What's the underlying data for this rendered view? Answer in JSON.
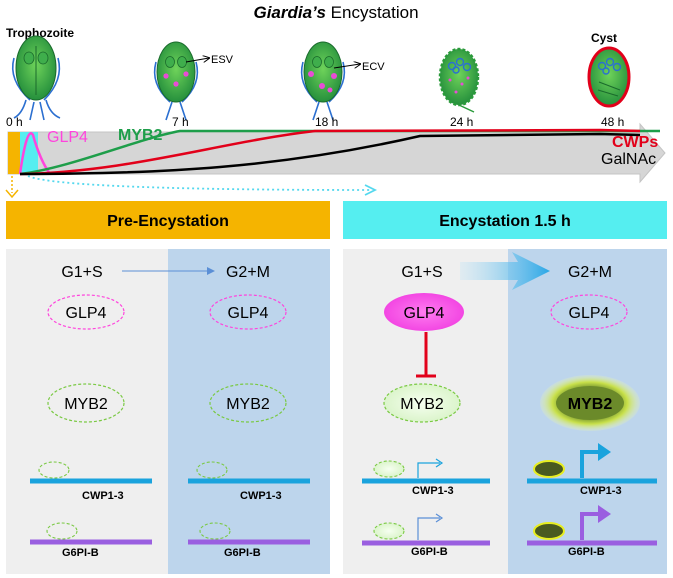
{
  "title": {
    "italic": "Giardia’s",
    "rest": " Encystation"
  },
  "stages": [
    {
      "label": "Trophozoite",
      "icon": "trophozoite-cell-icon"
    },
    {
      "label": "ESV",
      "icon": "cell-with-esv-icon"
    },
    {
      "label": "ECV",
      "icon": "cell-with-ecv-icon"
    },
    {
      "label": "",
      "icon": "early-cyst-icon"
    },
    {
      "label": "Cyst",
      "icon": "mature-cyst-icon"
    }
  ],
  "timeline": {
    "ticks": [
      "0 h",
      "7 h",
      "18 h",
      "24 h",
      "48 h"
    ],
    "labels": {
      "glp4": "GLP4",
      "myb2": "MYB2",
      "cwps": "CWPs",
      "galnac": "GalNAc"
    },
    "colors": {
      "glp4": "#ff44dd",
      "myb2": "#1e9e4a",
      "cwps": "#e2001a",
      "galnac": "#000000"
    }
  },
  "panels": {
    "left": {
      "title": "Pre-Encystation",
      "header_color": "#f5b400",
      "phase_a": "G1+S",
      "phase_b": "G2+M",
      "glp4": "GLP4",
      "myb2": "MYB2",
      "gene1": "CWP1-3",
      "gene2": "G6PI-B"
    },
    "right": {
      "title": "Encystation 1.5 h",
      "header_color": "#55eef0",
      "phase_a": "G1+S",
      "phase_b": "G2+M",
      "glp4": "GLP4",
      "myb2": "MYB2",
      "gene1": "CWP1-3",
      "gene2": "G6PI-B"
    }
  },
  "colors": {
    "gene1": "#1aa3dd",
    "gene2": "#9a5fe0",
    "panel_gray": "#efefef",
    "panel_blue": "#bdd5ec"
  }
}
